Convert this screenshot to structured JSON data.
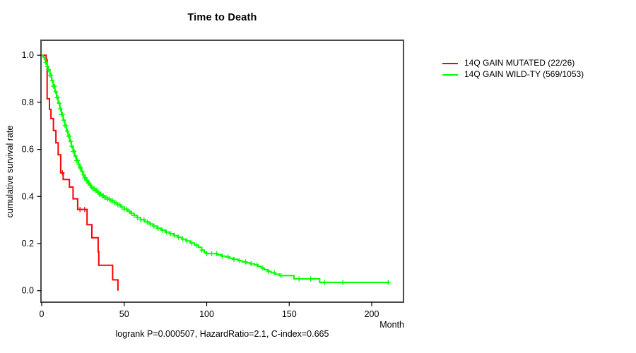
{
  "chart_data": {
    "type": "line",
    "variant": "kaplan_meier_step",
    "title": "Time to Death",
    "xlabel": "Month",
    "ylabel": "cumulative survival rate",
    "annotation": "logrank P=0.000507, HazardRatio=2.1, C-index=0.665",
    "xlim": [
      0,
      220
    ],
    "ylim": [
      0.0,
      1.0
    ],
    "x_ticks": [
      0,
      50,
      100,
      150,
      200
    ],
    "x_tick_labels": [
      "0",
      "50",
      "100",
      "150",
      "200"
    ],
    "y_ticks": [
      0.0,
      0.2,
      0.4,
      0.6,
      0.8,
      1.0
    ],
    "y_tick_labels": [
      "0.0",
      "0.2",
      "0.4",
      "0.6",
      "0.8",
      "1.0"
    ],
    "grid": false,
    "legend_position": "right-outside-top",
    "axis_color": "#4a4a4a",
    "tick_color": "#000000",
    "text_color": "#000000",
    "series": [
      {
        "name": "14Q GAIN MUTATED (22/26)",
        "color": "#FF0000",
        "points": [
          [
            0,
            1.0
          ],
          [
            2.7,
            0.981
          ],
          [
            3.3,
            0.815
          ],
          [
            4.7,
            0.77
          ],
          [
            5.6,
            0.731
          ],
          [
            7.1,
            0.68
          ],
          [
            8.6,
            0.628
          ],
          [
            10.0,
            0.577
          ],
          [
            11.5,
            0.5
          ],
          [
            13.0,
            0.472
          ],
          [
            16.8,
            0.44
          ],
          [
            19.0,
            0.39
          ],
          [
            21.8,
            0.345
          ],
          [
            27.5,
            0.28
          ],
          [
            30.4,
            0.225
          ],
          [
            34.2,
            0.165
          ],
          [
            34.6,
            0.108
          ],
          [
            43.0,
            0.046
          ],
          [
            46.2,
            0.0
          ]
        ],
        "censor_marks": [
          12.6,
          23.2,
          26.1
        ]
      },
      {
        "name": "14Q GAIN WILD-TY (569/1053)",
        "color": "#00FF00",
        "points": [
          [
            0,
            1.0
          ],
          [
            0.8,
            0.992
          ],
          [
            1.6,
            0.982
          ],
          [
            2.4,
            0.97
          ],
          [
            3.2,
            0.952
          ],
          [
            4,
            0.938
          ],
          [
            5,
            0.915
          ],
          [
            6,
            0.892
          ],
          [
            7,
            0.868
          ],
          [
            8,
            0.845
          ],
          [
            9,
            0.82
          ],
          [
            10,
            0.796
          ],
          [
            11,
            0.772
          ],
          [
            12,
            0.748
          ],
          [
            13,
            0.724
          ],
          [
            14,
            0.701
          ],
          [
            15,
            0.678
          ],
          [
            16,
            0.656
          ],
          [
            17,
            0.634
          ],
          [
            18,
            0.613
          ],
          [
            19,
            0.592
          ],
          [
            20,
            0.572
          ],
          [
            21,
            0.553
          ],
          [
            22,
            0.537
          ],
          [
            23,
            0.521
          ],
          [
            24,
            0.506
          ],
          [
            25,
            0.492
          ],
          [
            26,
            0.479
          ],
          [
            27,
            0.468
          ],
          [
            28,
            0.457
          ],
          [
            29,
            0.448
          ],
          [
            30,
            0.44
          ],
          [
            31,
            0.433
          ],
          [
            32,
            0.426
          ],
          [
            33.5,
            0.418
          ],
          [
            35,
            0.41
          ],
          [
            36.5,
            0.403
          ],
          [
            38,
            0.396
          ],
          [
            40,
            0.389
          ],
          [
            42,
            0.382
          ],
          [
            44,
            0.373
          ],
          [
            46,
            0.364
          ],
          [
            48,
            0.355
          ],
          [
            50,
            0.346
          ],
          [
            52,
            0.337
          ],
          [
            54,
            0.328
          ],
          [
            56,
            0.319
          ],
          [
            58,
            0.31
          ],
          [
            60,
            0.301
          ],
          [
            62.5,
            0.292
          ],
          [
            65,
            0.283
          ],
          [
            67.5,
            0.274
          ],
          [
            70,
            0.265
          ],
          [
            72.5,
            0.257
          ],
          [
            75,
            0.249
          ],
          [
            77.5,
            0.242
          ],
          [
            80,
            0.234
          ],
          [
            82.5,
            0.227
          ],
          [
            85,
            0.219
          ],
          [
            87.5,
            0.211
          ],
          [
            90,
            0.202
          ],
          [
            92.5,
            0.193
          ],
          [
            95,
            0.184
          ],
          [
            97,
            0.172
          ],
          [
            98.5,
            0.163
          ],
          [
            100,
            0.157
          ],
          [
            106.5,
            0.152
          ],
          [
            109,
            0.147
          ],
          [
            111.5,
            0.143
          ],
          [
            114,
            0.138
          ],
          [
            116.5,
            0.133
          ],
          [
            119,
            0.127
          ],
          [
            121.5,
            0.122
          ],
          [
            124,
            0.118
          ],
          [
            126.5,
            0.114
          ],
          [
            129,
            0.109
          ],
          [
            131,
            0.103
          ],
          [
            133,
            0.096
          ],
          [
            135,
            0.089
          ],
          [
            137,
            0.082
          ],
          [
            139,
            0.076
          ],
          [
            141.5,
            0.07
          ],
          [
            144,
            0.064
          ],
          [
            152.9,
            0.05
          ],
          [
            168.5,
            0.035
          ],
          [
            210.6,
            0.035
          ]
        ],
        "censor_marks": [
          2.5,
          3.4,
          4.2,
          5,
          5.7,
          6.4,
          7.1,
          7.8,
          8.5,
          9.2,
          9.9,
          10.6,
          11.3,
          12,
          12.7,
          13.4,
          14.1,
          14.8,
          15.5,
          16.2,
          16.9,
          17.6,
          18.3,
          19,
          19.7,
          20.4,
          21.1,
          21.8,
          22.5,
          23.2,
          23.9,
          24.6,
          25.3,
          26,
          26.7,
          27.4,
          28.1,
          28.8,
          29.5,
          30.2,
          31,
          31.8,
          32.6,
          33.4,
          34.2,
          35,
          35.8,
          36.6,
          37.4,
          38.2,
          39,
          40,
          41,
          42,
          43,
          44,
          45,
          46.2,
          47.4,
          48.6,
          50,
          51.5,
          53,
          54.5,
          56,
          58,
          60,
          62,
          64,
          66,
          68,
          70.5,
          73,
          75.5,
          78,
          80.5,
          83,
          85.5,
          88,
          91,
          94,
          97,
          100,
          103,
          106,
          109.5,
          113,
          116.5,
          120,
          123.5,
          127,
          130.5,
          134,
          137.5,
          141,
          145,
          156,
          163,
          171.5,
          182.5,
          210
        ]
      }
    ]
  }
}
